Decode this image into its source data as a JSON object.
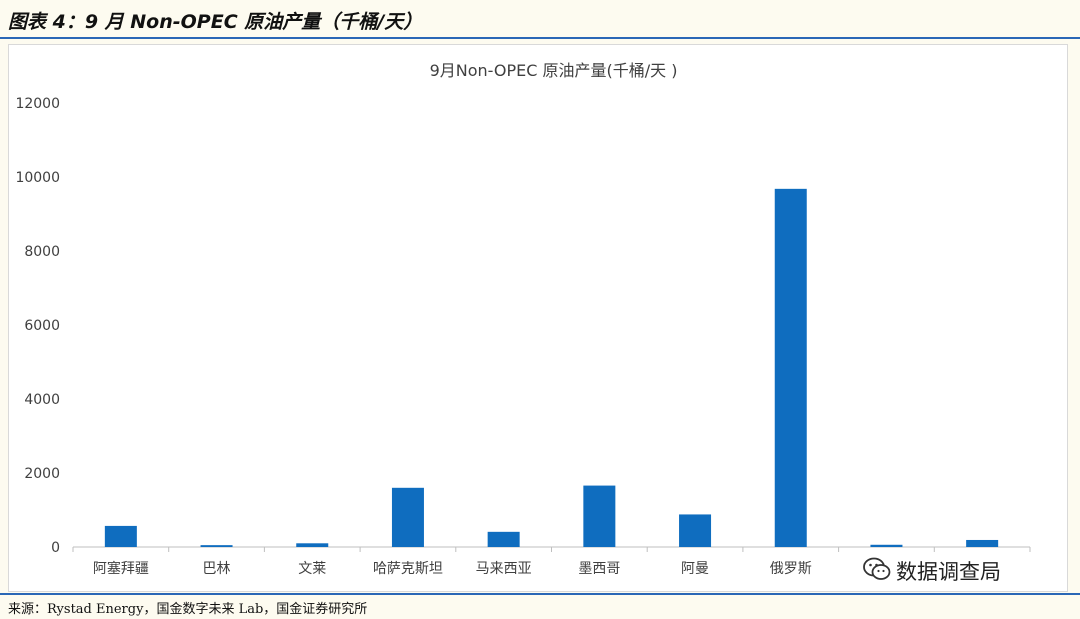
{
  "caption": "图表 4：9 月 Non-OPEC 原油产量（千桶/天）",
  "source": "来源：Rystad Energy，国金数字未来 Lab，国金证券研究所",
  "watermark": {
    "text": "数据调查局",
    "icon": "wechat-icon"
  },
  "colors": {
    "bar": "#0f6dbf",
    "axis": "#bfbfbf",
    "text": "#404040",
    "rule": "#2a67b6"
  },
  "chart_data": {
    "type": "bar",
    "title": "9月Non-OPEC 原油产量(千桶/天 )",
    "xlabel": "",
    "ylabel": "",
    "categories": [
      "阿塞拜疆",
      "巴林",
      "文莱",
      "哈萨克斯坦",
      "马来西亚",
      "墨西哥",
      "阿曼",
      "俄罗斯",
      "",
      ""
    ],
    "values": [
      570,
      50,
      100,
      1600,
      410,
      1660,
      880,
      9680,
      60,
      190
    ],
    "ylim": [
      0,
      12000
    ],
    "yticks": [
      0,
      2000,
      4000,
      6000,
      8000,
      10000,
      12000
    ],
    "grid": false,
    "legend": "none"
  }
}
